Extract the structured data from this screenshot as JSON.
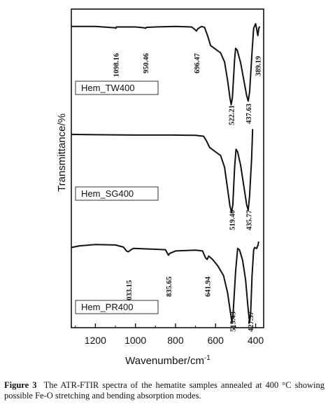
{
  "chart_data": {
    "type": "line",
    "xlabel": "Wavenumber/cm",
    "xlabel_sup": "-1",
    "ylabel": "Transmittance/%",
    "xlim": [
      1320,
      360
    ],
    "x_reversed": true,
    "xticks": [
      1200,
      1000,
      800,
      600,
      400
    ],
    "grid": false,
    "series": [
      {
        "name": "Hem_TW400",
        "peaks": [
          "1098.16",
          "950.46",
          "696.47",
          "522.21",
          "437.63",
          "389.19"
        ],
        "points": [
          [
            1320,
            0.06
          ],
          [
            1200,
            0.06
          ],
          [
            1100,
            0.075
          ],
          [
            1098,
            0.08
          ],
          [
            1095,
            0.065
          ],
          [
            1000,
            0.065
          ],
          [
            955,
            0.075
          ],
          [
            950,
            0.08
          ],
          [
            945,
            0.07
          ],
          [
            900,
            0.065
          ],
          [
            800,
            0.06
          ],
          [
            720,
            0.065
          ],
          [
            705,
            0.09
          ],
          [
            696,
            0.11
          ],
          [
            688,
            0.085
          ],
          [
            670,
            0.06
          ],
          [
            655,
            0.07
          ],
          [
            640,
            0.16
          ],
          [
            625,
            0.27
          ],
          [
            600,
            0.31
          ],
          [
            575,
            0.35
          ],
          [
            555,
            0.45
          ],
          [
            540,
            0.65
          ],
          [
            528,
            0.85
          ],
          [
            522,
            0.92
          ],
          [
            516,
            0.84
          ],
          [
            505,
            0.42
          ],
          [
            500,
            0.3
          ],
          [
            492,
            0.32
          ],
          [
            475,
            0.46
          ],
          [
            460,
            0.64
          ],
          [
            445,
            0.82
          ],
          [
            437,
            0.88
          ],
          [
            430,
            0.78
          ],
          [
            418,
            0.34
          ],
          [
            410,
            0.08
          ],
          [
            400,
            0.03
          ],
          [
            394,
            0.1
          ],
          [
            389,
            0.16
          ],
          [
            384,
            0.08
          ],
          [
            380,
            0.06
          ]
        ]
      },
      {
        "name": "Hem_SG400",
        "peaks": [
          "519.40",
          "435.77"
        ],
        "points": [
          [
            1320,
            0.055
          ],
          [
            1200,
            0.058
          ],
          [
            1000,
            0.062
          ],
          [
            800,
            0.062
          ],
          [
            700,
            0.065
          ],
          [
            660,
            0.075
          ],
          [
            645,
            0.13
          ],
          [
            630,
            0.2
          ],
          [
            600,
            0.25
          ],
          [
            575,
            0.29
          ],
          [
            555,
            0.42
          ],
          [
            540,
            0.66
          ],
          [
            528,
            0.86
          ],
          [
            520,
            0.92
          ],
          [
            514,
            0.84
          ],
          [
            505,
            0.42
          ],
          [
            498,
            0.22
          ],
          [
            490,
            0.25
          ],
          [
            475,
            0.4
          ],
          [
            460,
            0.62
          ],
          [
            445,
            0.84
          ],
          [
            437,
            0.9
          ],
          [
            430,
            0.74
          ],
          [
            420,
            0.32
          ],
          [
            415,
            0.0
          ],
          [
            413,
            0.0
          ]
        ]
      },
      {
        "name": "Hem_PR400",
        "peaks": [
          "1033.15",
          "835.65",
          "641.94",
          "515.43",
          "427.37"
        ],
        "points": [
          [
            1320,
            0.07
          ],
          [
            1280,
            0.05
          ],
          [
            1200,
            0.035
          ],
          [
            1100,
            0.04
          ],
          [
            1060,
            0.065
          ],
          [
            1045,
            0.11
          ],
          [
            1035,
            0.12
          ],
          [
            1025,
            0.1
          ],
          [
            1010,
            0.08
          ],
          [
            900,
            0.09
          ],
          [
            850,
            0.095
          ],
          [
            840,
            0.14
          ],
          [
            835,
            0.16
          ],
          [
            830,
            0.14
          ],
          [
            800,
            0.11
          ],
          [
            700,
            0.1
          ],
          [
            665,
            0.11
          ],
          [
            650,
            0.19
          ],
          [
            642,
            0.21
          ],
          [
            634,
            0.17
          ],
          [
            615,
            0.21
          ],
          [
            590,
            0.28
          ],
          [
            560,
            0.4
          ],
          [
            540,
            0.6
          ],
          [
            525,
            0.84
          ],
          [
            518,
            0.95
          ],
          [
            512,
            0.82
          ],
          [
            500,
            0.35
          ],
          [
            490,
            0.08
          ],
          [
            480,
            0.1
          ],
          [
            465,
            0.22
          ],
          [
            450,
            0.45
          ],
          [
            438,
            0.78
          ],
          [
            430,
            0.95
          ],
          [
            425,
            0.84
          ],
          [
            418,
            0.4
          ],
          [
            410,
            0.1
          ],
          [
            405,
            0.07
          ],
          [
            395,
            0.08
          ],
          [
            388,
            0.04
          ],
          [
            385,
            0.0
          ]
        ]
      }
    ]
  },
  "caption": {
    "label": "Figure 3",
    "text": "The ATR-FTIR spectra of the hematite samples annealed at 400 °C showing possible Fe-O stretching and bending absorption modes."
  }
}
